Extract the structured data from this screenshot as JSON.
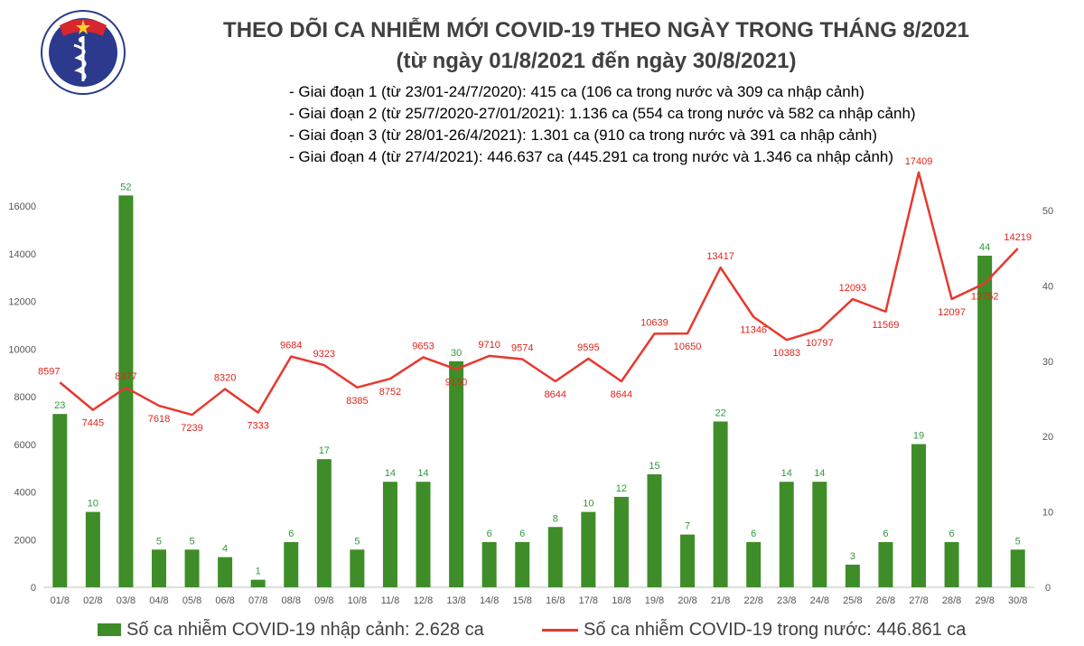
{
  "header": {
    "title_line1": "THEO DÕI CA NHIỄM MỚI COVID-19 THEO NGÀY TRONG THÁNG 8/2021",
    "title_line2": "(từ ngày 01/8/2021 đến ngày 30/8/2021)"
  },
  "logo": {
    "top_text": "BỘ Y TẾ",
    "bottom_text": "MINISTRY OF HEALTH"
  },
  "stages": [
    "- Giai đoạn 1 (từ 23/01-24/7/2020): 415 ca (106 ca trong nước và 309 ca nhập cảnh)",
    "- Giai đoạn 2 (từ 25/7/2020-27/01/2021): 1.136 ca (554 ca trong nước và 582 ca nhập cảnh)",
    "- Giai đoạn 3 (từ 28/01-26/4/2021): 1.301 ca (910 ca trong nước và 391 ca nhập cảnh)",
    "- Giai đoạn 4 (từ 27/4/2021): 446.637 ca (445.291 ca trong nước và 1.346 ca nhập cảnh)"
  ],
  "legend": {
    "bar_label": "Số ca nhiễm COVID-19 nhập cảnh: 2.628 ca",
    "line_label": "Số ca nhiễm COVID-19 trong nước: 446.861 ca"
  },
  "colors": {
    "bar": "#3e8d28",
    "line": "#e8382f",
    "bar_label": "#2e9a3a",
    "line_label": "#e0241b",
    "axis_text": "#555555"
  },
  "chart_data": {
    "type": "bar+line",
    "categories": [
      "01/8",
      "02/8",
      "03/8",
      "04/8",
      "05/8",
      "06/8",
      "07/8",
      "08/8",
      "09/8",
      "10/8",
      "11/8",
      "12/8",
      "13/8",
      "14/8",
      "15/8",
      "16/8",
      "17/8",
      "18/8",
      "19/8",
      "20/8",
      "21/8",
      "22/8",
      "23/8",
      "24/8",
      "25/8",
      "26/8",
      "27/8",
      "28/8",
      "29/8",
      "30/8"
    ],
    "series": [
      {
        "name": "Số ca nhiễm COVID-19 nhập cảnh: 2.628 ca",
        "type": "bar",
        "axis": "right",
        "values": [
          23,
          10,
          52,
          5,
          5,
          4,
          1,
          6,
          17,
          5,
          14,
          14,
          30,
          6,
          6,
          8,
          10,
          12,
          15,
          7,
          22,
          6,
          14,
          14,
          3,
          6,
          19,
          6,
          44,
          5
        ]
      },
      {
        "name": "Số ca nhiễm COVID-19 trong nước: 446.861 ca",
        "type": "line",
        "axis": "left",
        "values": [
          8597,
          7445,
          8377,
          7618,
          7239,
          8320,
          7333,
          9684,
          9323,
          8385,
          8752,
          9653,
          9150,
          9710,
          9574,
          8644,
          9595,
          8644,
          10639,
          10650,
          13417,
          11346,
          10383,
          10797,
          12093,
          11569,
          17409,
          12097,
          12752,
          14219
        ]
      }
    ],
    "y_left": {
      "range": [
        0,
        16000
      ],
      "ticks": [
        0,
        2000,
        4000,
        6000,
        8000,
        10000,
        12000,
        14000,
        16000
      ]
    },
    "y_right": {
      "range": [
        0,
        50
      ],
      "ticks": [
        0,
        10,
        20,
        30,
        40,
        50
      ]
    },
    "legend_position": "bottom",
    "grid": false
  }
}
